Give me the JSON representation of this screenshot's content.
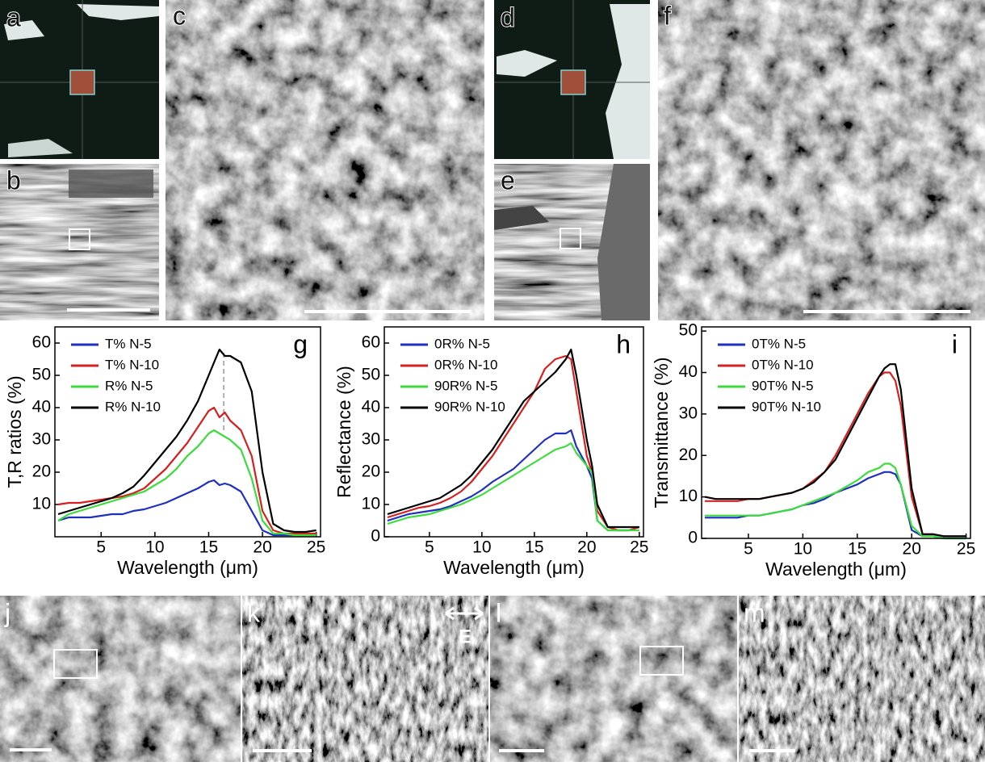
{
  "panel_labels": {
    "a": "a",
    "b": "b",
    "c": "c",
    "d": "d",
    "e": "e",
    "f": "f",
    "j": "j",
    "k": "k",
    "l": "l",
    "m": "m"
  },
  "polarization_label": "E",
  "chart_data": [
    {
      "type": "line",
      "label": "g",
      "ylabel": "T,R ratios (%)",
      "xlabel": "Wavelength (μm)",
      "xlim": [
        0.7,
        25.4
      ],
      "ylim": [
        0,
        65
      ],
      "xticks": [
        5,
        10,
        15,
        20,
        25
      ],
      "yticks": [
        10,
        20,
        30,
        40,
        50,
        60
      ],
      "legend": "upper left",
      "vline": 16.4,
      "x": [
        1,
        2,
        3,
        4,
        5,
        6,
        7,
        8,
        9,
        10,
        11,
        12,
        13,
        14,
        15,
        15.5,
        16,
        16.5,
        17,
        18,
        19,
        20,
        21,
        22,
        23,
        24,
        25
      ],
      "series": [
        {
          "name": "T% N-5",
          "color": "#1f2fbf",
          "values": [
            5,
            6,
            6,
            6,
            6.5,
            7,
            7,
            8,
            8.5,
            9.5,
            10.5,
            12,
            13.5,
            15,
            17,
            17.5,
            16,
            16.5,
            16,
            14,
            8,
            2,
            0.5,
            0.5,
            0.5,
            0.5,
            0.5
          ]
        },
        {
          "name": "T% N-10",
          "color": "#d62020",
          "values": [
            10,
            10.5,
            10.5,
            11,
            11.5,
            12,
            12.5,
            13.5,
            15,
            18,
            21,
            25,
            29,
            34,
            39,
            40,
            37,
            38.5,
            36,
            33,
            25,
            8,
            2,
            1,
            1,
            1,
            1
          ]
        },
        {
          "name": "R% N-5",
          "color": "#3ddc3d",
          "values": [
            5,
            7,
            8,
            9,
            10,
            11,
            12,
            13,
            14,
            16,
            18,
            21,
            25,
            28,
            32,
            33,
            32,
            31,
            30,
            27,
            18,
            5,
            1,
            1,
            0.5,
            0.5,
            0.5
          ]
        },
        {
          "name": "R% N-10",
          "color": "#000000",
          "values": [
            7,
            8,
            9,
            10,
            11,
            12,
            13.5,
            15.5,
            19,
            23,
            27,
            31,
            36,
            42,
            50,
            54,
            58,
            56,
            56,
            54,
            45,
            20,
            4,
            2,
            1.5,
            1.5,
            2
          ]
        }
      ]
    },
    {
      "type": "line",
      "label": "h",
      "ylabel": "Reflectance (%)",
      "xlabel": "Wavelength (μm)",
      "xlim": [
        0.7,
        25.4
      ],
      "ylim": [
        0,
        65
      ],
      "xticks": [
        5,
        10,
        15,
        20,
        25
      ],
      "yticks": [
        0,
        10,
        20,
        30,
        40,
        50,
        60
      ],
      "legend": "upper left",
      "x": [
        1,
        2,
        3,
        4,
        5,
        6,
        7,
        8,
        9,
        10,
        11,
        12,
        13,
        14,
        15,
        16,
        17,
        18,
        18.5,
        19,
        20,
        20.5,
        21,
        22,
        23,
        24,
        25
      ],
      "series": [
        {
          "name": "0R% N-5",
          "color": "#1f2fbf",
          "values": [
            5,
            6,
            7,
            7.5,
            8,
            8.5,
            9.5,
            11,
            12.5,
            14.5,
            17,
            19,
            21,
            24,
            27,
            30,
            32,
            32,
            33,
            28,
            22,
            18,
            5,
            2,
            2,
            2,
            3
          ]
        },
        {
          "name": "0R% N-10",
          "color": "#d62020",
          "values": [
            6,
            7,
            8,
            9,
            9.5,
            10.5,
            12,
            14,
            17,
            21,
            25,
            30,
            35,
            40,
            45,
            52,
            55,
            56,
            55,
            45,
            25,
            20,
            8,
            3,
            2,
            2,
            3
          ]
        },
        {
          "name": "90R% N-5",
          "color": "#3ddc3d",
          "values": [
            4,
            5,
            6,
            6.5,
            7,
            8,
            9,
            10,
            11.5,
            13,
            15,
            17,
            19,
            21,
            23,
            25,
            27,
            28,
            29,
            26,
            22,
            20,
            5,
            2,
            2,
            2,
            2
          ]
        },
        {
          "name": "90R% N-10",
          "color": "#000000",
          "values": [
            7,
            8,
            9,
            10,
            11,
            12,
            14,
            16,
            19,
            23,
            27,
            32,
            37,
            42,
            45,
            48,
            51,
            55,
            58,
            50,
            30,
            22,
            10,
            3,
            3,
            3,
            3
          ]
        }
      ]
    },
    {
      "type": "line",
      "label": "i",
      "ylabel": "Transmittance (%)",
      "xlabel": "Wavelength (μm)",
      "xlim": [
        0.7,
        25.4
      ],
      "ylim": [
        0,
        51
      ],
      "xticks": [
        5,
        10,
        15,
        20,
        25
      ],
      "yticks": [
        0,
        10,
        20,
        30,
        40,
        50
      ],
      "legend": "upper left",
      "x": [
        1,
        2,
        3,
        4,
        5,
        6,
        7,
        8,
        9,
        10,
        11,
        12,
        13,
        14,
        15,
        16,
        17,
        17.5,
        18,
        18.5,
        19,
        20,
        21,
        22,
        23,
        24,
        25
      ],
      "series": [
        {
          "name": "0T% N-5",
          "color": "#1f2fbf",
          "values": [
            5,
            5,
            5,
            5,
            5.5,
            5.5,
            6,
            6.5,
            7,
            8,
            8.5,
            9.5,
            11,
            12,
            13,
            14.5,
            15.5,
            16,
            16,
            15.5,
            13,
            2,
            0.5,
            0.5,
            0,
            0,
            0
          ]
        },
        {
          "name": "0T% N-10",
          "color": "#d62020",
          "values": [
            9,
            9,
            9,
            9,
            9.5,
            9.5,
            10,
            10.5,
            11,
            12,
            14,
            16,
            20,
            25,
            30,
            35,
            39,
            40,
            40,
            38,
            32,
            10,
            1,
            1,
            0.5,
            0.5,
            0.5
          ]
        },
        {
          "name": "90T% N-5",
          "color": "#3ddc3d",
          "values": [
            5.5,
            5.5,
            5.5,
            5.5,
            5.5,
            5.5,
            6,
            6.5,
            7,
            8,
            9,
            10,
            11,
            12.5,
            14,
            16,
            17,
            18,
            18,
            17,
            13,
            3,
            0.5,
            0.5,
            0,
            0,
            0
          ]
        },
        {
          "name": "90T% N-10",
          "color": "#000000",
          "values": [
            10,
            9.5,
            9.5,
            9.5,
            9.5,
            9.5,
            10,
            10.5,
            11,
            12,
            13.5,
            16,
            19,
            24,
            29,
            34,
            39,
            41,
            42,
            42,
            36,
            12,
            1,
            1,
            0.5,
            0.5,
            0.5
          ]
        }
      ]
    }
  ]
}
